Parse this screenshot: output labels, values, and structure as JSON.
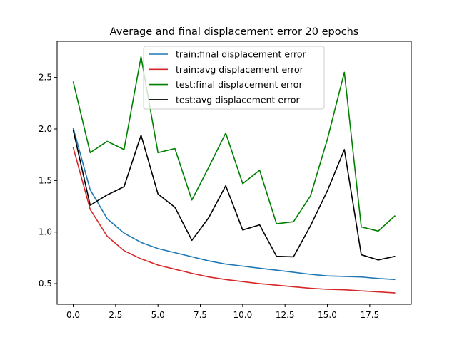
{
  "chart_data": {
    "type": "line",
    "title": "Average and final displacement error 20 epochs",
    "xlabel": "",
    "ylabel": "",
    "xlim": [
      -0.95,
      19.95
    ],
    "ylim": [
      0.3,
      2.85
    ],
    "xticks": [
      0.0,
      2.5,
      5.0,
      7.5,
      10.0,
      12.5,
      15.0,
      17.5
    ],
    "xtick_labels": [
      "0.0",
      "2.5",
      "5.0",
      "7.5",
      "10.0",
      "12.5",
      "15.0",
      "17.5"
    ],
    "yticks": [
      0.5,
      1.0,
      1.5,
      2.0,
      2.5
    ],
    "ytick_labels": [
      "0.5",
      "1.0",
      "1.5",
      "2.0",
      "2.5"
    ],
    "grid": false,
    "legend_position": "upper-center",
    "x": [
      0,
      1,
      2,
      3,
      4,
      5,
      6,
      7,
      8,
      9,
      10,
      11,
      12,
      13,
      14,
      15,
      16,
      17,
      18,
      19
    ],
    "series": [
      {
        "name": "train:final displacement error",
        "color": "#1f77b4",
        "values": [
          2.01,
          1.41,
          1.13,
          0.99,
          0.9,
          0.84,
          0.8,
          0.76,
          0.72,
          0.69,
          0.67,
          0.65,
          0.63,
          0.61,
          0.59,
          0.575,
          0.57,
          0.565,
          0.55,
          0.54
        ]
      },
      {
        "name": "train:avg displacement error",
        "color": "#d62728",
        "values": [
          1.82,
          1.22,
          0.96,
          0.82,
          0.74,
          0.68,
          0.64,
          0.6,
          0.565,
          0.54,
          0.52,
          0.5,
          0.485,
          0.47,
          0.455,
          0.445,
          0.44,
          0.43,
          0.42,
          0.41
        ]
      },
      {
        "name": "test:final displacement error",
        "color": "#008000",
        "values": [
          2.46,
          1.77,
          1.88,
          1.8,
          2.7,
          1.77,
          1.81,
          1.31,
          1.63,
          1.96,
          1.47,
          1.6,
          1.08,
          1.1,
          1.35,
          1.9,
          2.55,
          1.05,
          1.01,
          1.16
        ]
      },
      {
        "name": "test:avg displacement error",
        "color": "#000000",
        "values": [
          1.99,
          1.26,
          1.36,
          1.44,
          1.94,
          1.37,
          1.24,
          0.92,
          1.14,
          1.45,
          1.02,
          1.07,
          0.765,
          0.76,
          1.06,
          1.4,
          1.8,
          0.78,
          0.73,
          0.765
        ]
      }
    ]
  }
}
